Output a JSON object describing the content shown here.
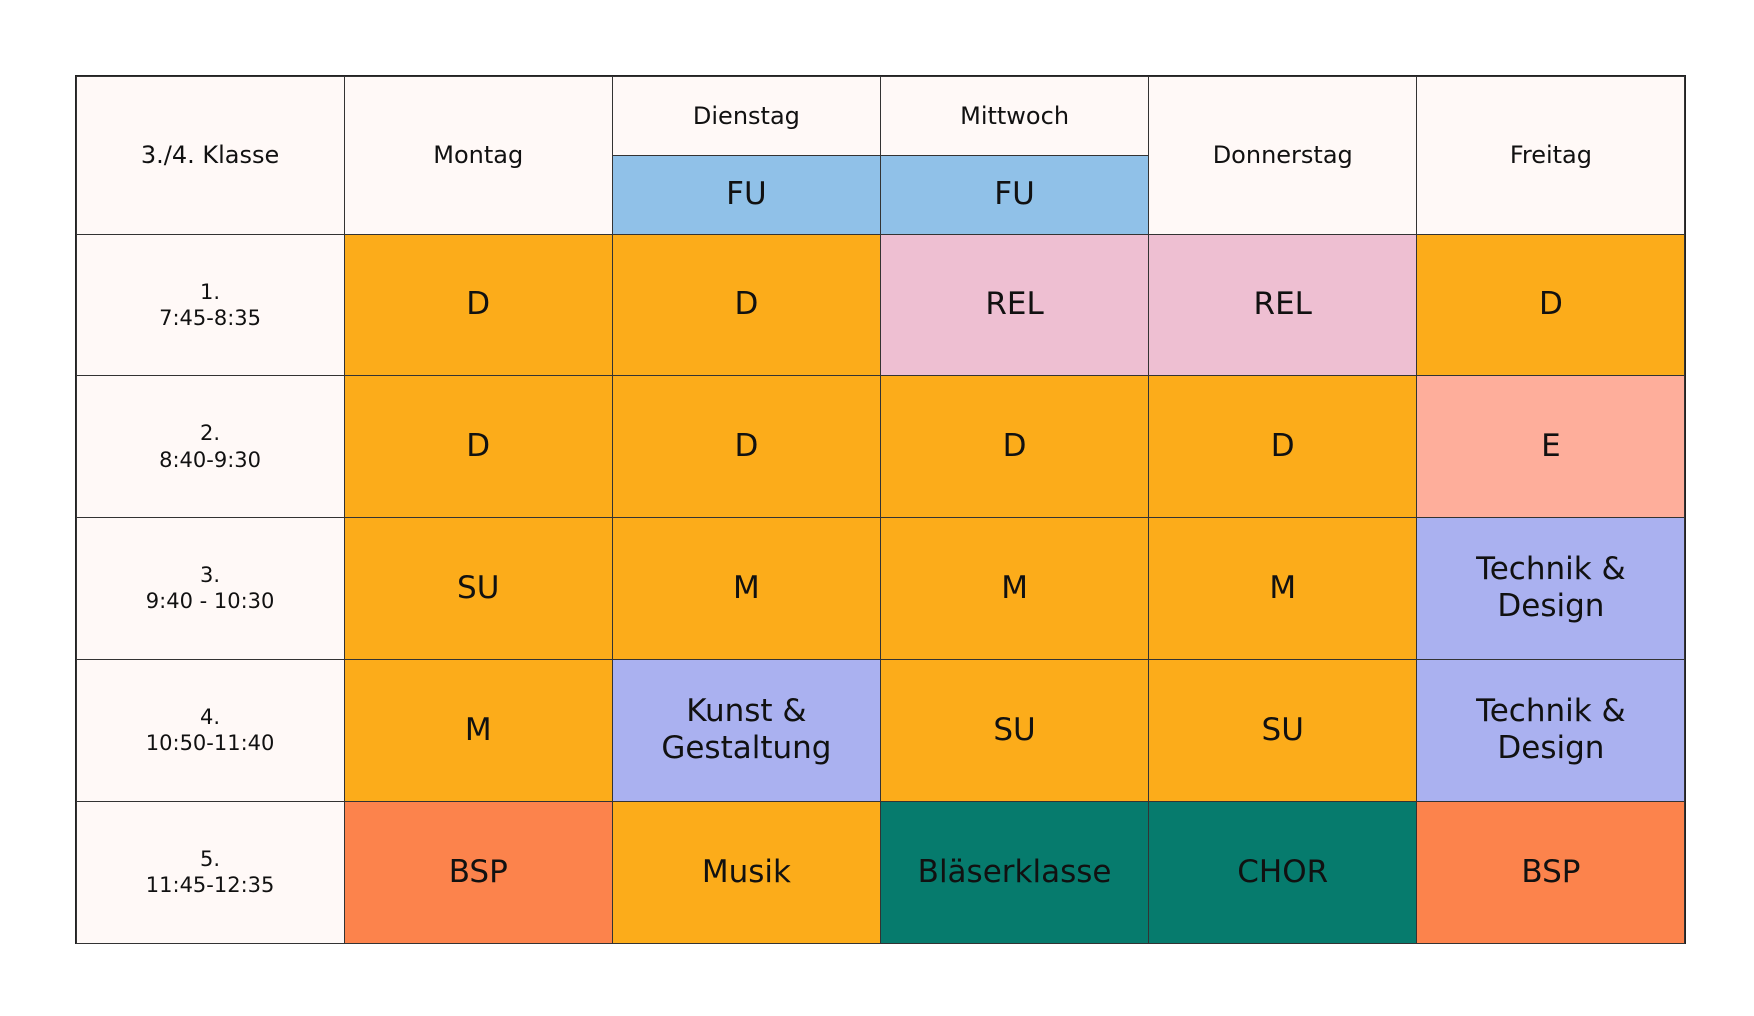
{
  "header": {
    "corner": "3./4. Klasse",
    "days": [
      "Montag",
      "Dienstag",
      "Mittwoch",
      "Donnerstag",
      "Freitag"
    ],
    "sub_labels": {
      "Dienstag": "FU",
      "Mittwoch": "FU"
    }
  },
  "colors": {
    "header_bg": "#FFF9F7",
    "fu": "#90C1E8",
    "core": "#FCAC1A",
    "rel": "#EEBFD2",
    "english": "#FEAE9B",
    "creative": "#AAB1F0",
    "music_ensemble": "#067B6D",
    "sport": "#FC834C"
  },
  "rows": [
    {
      "num": "1.",
      "time": "7:45-8:35",
      "cells": [
        {
          "t": "D",
          "c": "#FCAC1A"
        },
        {
          "t": "D",
          "c": "#FCAC1A"
        },
        {
          "t": "REL",
          "c": "#EEBFD2"
        },
        {
          "t": "REL",
          "c": "#EEBFD2"
        },
        {
          "t": "D",
          "c": "#FCAC1A"
        }
      ]
    },
    {
      "num": "2.",
      "time": "8:40-9:30",
      "cells": [
        {
          "t": "D",
          "c": "#FCAC1A"
        },
        {
          "t": "D",
          "c": "#FCAC1A"
        },
        {
          "t": "D",
          "c": "#FCAC1A"
        },
        {
          "t": "D",
          "c": "#FCAC1A"
        },
        {
          "t": "E",
          "c": "#FEAE9B"
        }
      ]
    },
    {
      "num": "3.",
      "time": "9:40 - 10:30",
      "cells": [
        {
          "t": "SU",
          "c": "#FCAC1A"
        },
        {
          "t": "M",
          "c": "#FCAC1A"
        },
        {
          "t": "M",
          "c": "#FCAC1A"
        },
        {
          "t": "M",
          "c": "#FCAC1A"
        },
        {
          "t": "Technik & Design",
          "c": "#AAB1F0"
        }
      ]
    },
    {
      "num": "4.",
      "time": "10:50-11:40",
      "cells": [
        {
          "t": "M",
          "c": "#FCAC1A"
        },
        {
          "t": "Kunst & Gestaltung",
          "c": "#AAB1F0"
        },
        {
          "t": "SU",
          "c": "#FCAC1A"
        },
        {
          "t": "SU",
          "c": "#FCAC1A"
        },
        {
          "t": "Technik & Design",
          "c": "#AAB1F0"
        }
      ]
    },
    {
      "num": "5.",
      "time": "11:45-12:35",
      "cells": [
        {
          "t": "BSP",
          "c": "#FC834C"
        },
        {
          "t": "Musik",
          "c": "#FCAC1A"
        },
        {
          "t": "Bläserklasse",
          "c": "#067B6D"
        },
        {
          "t": "CHOR",
          "c": "#067B6D"
        },
        {
          "t": "BSP",
          "c": "#FC834C"
        }
      ]
    }
  ]
}
